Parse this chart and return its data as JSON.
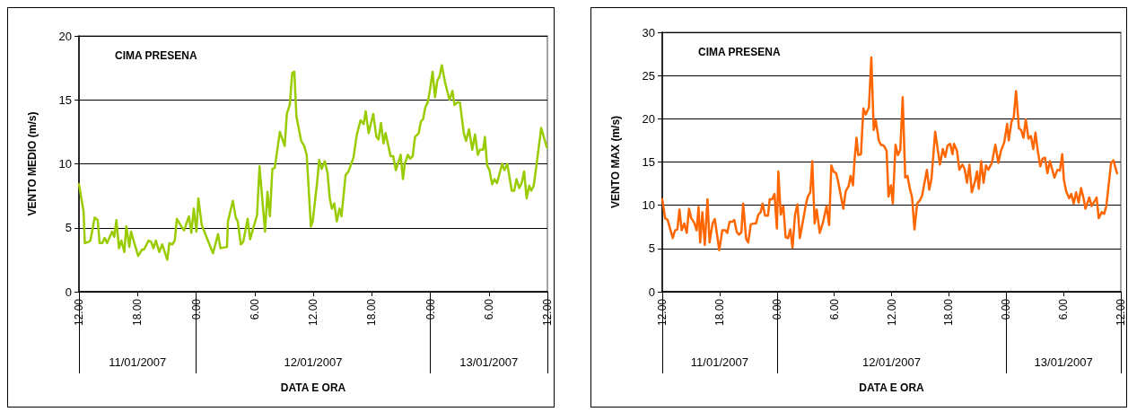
{
  "chart_data": [
    {
      "type": "line",
      "title": "CIMA PRESENA",
      "xlabel": "DATA E ORA",
      "ylabel": "VENTO MEDIO (m/s)",
      "grid": "y",
      "marker": "none",
      "line_style": "solid",
      "xlim": [
        "2007-01-11T12:00",
        "2007-01-13T12:00"
      ],
      "xticks": [
        {
          "value": "2007-01-11T12:00",
          "label": "12.00"
        },
        {
          "value": "2007-01-11T18:00",
          "label": "18.00"
        },
        {
          "value": "2007-01-12T00:00",
          "label": "0.00"
        },
        {
          "value": "2007-01-12T06:00",
          "label": "6.00"
        },
        {
          "value": "2007-01-12T12:00",
          "label": "12.00"
        },
        {
          "value": "2007-01-12T18:00",
          "label": "18.00"
        },
        {
          "value": "2007-01-13T00:00",
          "label": "0.00"
        },
        {
          "value": "2007-01-13T06:00",
          "label": "6.00"
        },
        {
          "value": "2007-01-13T12:00",
          "label": "12.00"
        }
      ],
      "x2lim": [
        "2007-01-11T12:00",
        "2007-01-13T12:00"
      ],
      "x2ticks": [
        {
          "value": "2007-01-11T12:00",
          "label": null
        },
        {
          "value": "2007-01-11T18:00",
          "label": "11/01/2007"
        },
        {
          "value": "2007-01-12T00:00",
          "label": null
        },
        {
          "value": "2007-01-12T12:00",
          "label": "12/01/2007"
        },
        {
          "value": "2007-01-13T00:00",
          "label": null
        },
        {
          "value": "2007-01-13T06:00",
          "label": "13/01/2007"
        },
        {
          "value": "2007-01-13T12:00",
          "label": null
        }
      ],
      "ylim": [
        0,
        20
      ],
      "yticks": [
        0,
        5,
        10,
        15,
        20
      ],
      "series": [
        {
          "color": "#99cc00",
          "x": [
            "2007-01-11T12:00",
            "2007-01-11T12:28",
            "2007-01-11T12:36",
            "2007-01-11T13:00",
            "2007-01-11T13:10",
            "2007-01-11T13:37",
            "2007-01-11T13:55",
            "2007-01-11T14:07",
            "2007-01-11T14:23",
            "2007-01-11T14:38",
            "2007-01-11T14:53",
            "2007-01-11T15:24",
            "2007-01-11T15:37",
            "2007-01-11T15:50",
            "2007-01-11T16:06",
            "2007-01-11T16:21",
            "2007-01-11T16:39",
            "2007-01-11T16:51",
            "2007-01-11T17:10",
            "2007-01-11T17:20",
            "2007-01-11T17:43",
            "2007-01-11T18:04",
            "2007-01-11T18:28",
            "2007-01-11T18:40",
            "2007-01-11T19:08",
            "2007-01-11T19:23",
            "2007-01-11T19:38",
            "2007-01-11T19:53",
            "2007-01-11T20:14",
            "2007-01-11T20:32",
            "2007-01-11T21:03",
            "2007-01-11T21:16",
            "2007-01-11T21:34",
            "2007-01-11T21:49",
            "2007-01-11T22:02",
            "2007-01-11T22:25",
            "2007-01-11T22:46",
            "2007-01-11T23:16",
            "2007-01-11T23:31",
            "2007-01-11T23:46",
            "2007-01-12T00:02",
            "2007-01-12T00:14",
            "2007-01-12T00:35",
            "2007-01-12T01:44",
            "2007-01-12T02:15",
            "2007-01-12T02:30",
            "2007-01-12T03:10",
            "2007-01-12T03:16",
            "2007-01-12T03:46",
            "2007-01-12T04:04",
            "2007-01-12T04:16",
            "2007-01-12T04:35",
            "2007-01-12T04:50",
            "2007-01-12T05:17",
            "2007-01-12T05:32",
            "2007-01-12T06:15",
            "2007-01-12T06:30",
            "2007-01-12T07:04",
            "2007-01-12T07:19",
            "2007-01-12T07:34",
            "2007-01-12T07:49",
            "2007-01-12T08:04",
            "2007-01-12T08:35",
            "2007-01-12T09:05",
            "2007-01-12T09:18",
            "2007-01-12T09:36",
            "2007-01-12T09:51",
            "2007-01-12T10:04",
            "2007-01-12T10:17",
            "2007-01-12T10:46",
            "2007-01-12T11:05",
            "2007-01-12T11:20",
            "2007-01-12T11:46",
            "2007-01-12T11:57",
            "2007-01-12T12:23",
            "2007-01-12T12:37",
            "2007-01-12T12:52",
            "2007-01-12T13:11",
            "2007-01-12T13:28",
            "2007-01-12T13:42",
            "2007-01-12T13:55",
            "2007-01-12T14:10",
            "2007-01-12T14:25",
            "2007-01-12T14:42",
            "2007-01-12T14:54",
            "2007-01-12T15:19",
            "2007-01-12T15:37",
            "2007-01-12T16:08",
            "2007-01-12T16:27",
            "2007-01-12T16:51",
            "2007-01-12T17:10",
            "2007-01-12T17:23",
            "2007-01-12T17:41",
            "2007-01-12T18:09",
            "2007-01-12T18:29",
            "2007-01-12T18:42",
            "2007-01-12T18:57",
            "2007-01-12T19:12",
            "2007-01-12T19:25",
            "2007-01-12T19:56",
            "2007-01-12T20:12",
            "2007-01-12T20:28",
            "2007-01-12T20:58",
            "2007-01-12T21:12",
            "2007-01-12T21:23",
            "2007-01-12T21:42",
            "2007-01-12T21:57",
            "2007-01-12T22:12",
            "2007-01-12T22:26",
            "2007-01-12T22:49",
            "2007-01-12T23:02",
            "2007-01-12T23:16",
            "2007-01-12T23:29",
            "2007-01-12T23:44",
            "2007-01-12T23:57",
            "2007-01-13T00:14",
            "2007-01-13T00:29",
            "2007-01-13T00:43",
            "2007-01-13T00:56",
            "2007-01-13T01:11",
            "2007-01-13T01:30",
            "2007-01-13T01:58",
            "2007-01-13T02:16",
            "2007-01-13T02:29",
            "2007-01-13T02:46",
            "2007-01-13T03:02",
            "2007-01-13T03:26",
            "2007-01-13T03:40",
            "2007-01-13T03:58",
            "2007-01-13T04:18",
            "2007-01-13T04:35",
            "2007-01-13T04:52",
            "2007-01-13T05:06",
            "2007-01-13T05:25",
            "2007-01-13T05:36",
            "2007-01-13T05:49",
            "2007-01-13T06:04",
            "2007-01-13T06:20",
            "2007-01-13T06:35",
            "2007-01-13T06:50",
            "2007-01-13T07:22",
            "2007-01-13T07:36",
            "2007-01-13T07:53",
            "2007-01-13T08:21",
            "2007-01-13T08:36",
            "2007-01-13T08:50",
            "2007-01-13T09:07",
            "2007-01-13T09:22",
            "2007-01-13T09:37",
            "2007-01-13T09:52",
            "2007-01-13T10:08",
            "2007-01-13T10:21",
            "2007-01-13T10:36",
            "2007-01-13T10:55",
            "2007-01-13T11:22",
            "2007-01-13T11:56"
          ],
          "values": [
            8.4,
            6.3,
            3.8,
            3.9,
            4.0,
            5.8,
            5.6,
            3.8,
            3.8,
            4.2,
            3.8,
            4.7,
            4.3,
            5.6,
            3.4,
            4.0,
            3.1,
            5.1,
            3.5,
            4.7,
            3.7,
            2.8,
            3.3,
            3.3,
            4.0,
            3.9,
            3.4,
            4.0,
            3.1,
            3.7,
            2.5,
            3.8,
            3.7,
            4.0,
            5.7,
            5.2,
            4.8,
            5.9,
            4.6,
            6.5,
            4.7,
            7.3,
            5.2,
            3.0,
            4.5,
            3.4,
            3.5,
            5.5,
            7.1,
            5.8,
            5.5,
            3.7,
            3.9,
            5.7,
            4.1,
            6.0,
            9.8,
            4.7,
            7.8,
            5.9,
            9.6,
            9.7,
            12.5,
            11.4,
            13.9,
            14.6,
            17.1,
            17.2,
            13.7,
            11.8,
            11.4,
            10.7,
            5.1,
            5.5,
            8.4,
            10.3,
            9.6,
            10.2,
            9.3,
            7.3,
            6.5,
            6.9,
            5.5,
            6.5,
            5.9,
            9.1,
            9.4,
            10.5,
            12.2,
            13.4,
            13.1,
            14.1,
            12.4,
            13.9,
            12.1,
            11.9,
            13.2,
            11.6,
            12.4,
            10.6,
            10.6,
            9.5,
            10.7,
            8.8,
            10.0,
            10.7,
            10.4,
            10.6,
            12.1,
            12.4,
            13.3,
            13.5,
            14.4,
            14.8,
            15.7,
            17.2,
            15.2,
            16.5,
            16.8,
            17.7,
            16.4,
            15.0,
            15.7,
            14.6,
            14.8,
            14.8,
            12.4,
            11.8,
            12.7,
            11.1,
            12.3,
            10.7,
            11.1,
            11.1,
            12.1,
            9.9,
            9.5,
            8.4,
            8.8,
            8.5,
            10.0,
            9.5,
            10.0,
            7.9,
            7.9,
            8.8,
            8.1,
            8.5,
            9.4,
            7.3,
            8.3,
            7.9,
            8.3,
            10.1,
            12.8,
            11.3
          ]
        }
      ]
    },
    {
      "type": "line",
      "title": "CIMA PRESENA",
      "xlabel": "DATA E ORA",
      "ylabel": "VENTO MAX (m/s)",
      "grid": "y",
      "marker": "none",
      "line_style": "solid",
      "xlim": [
        "2007-01-11T12:00",
        "2007-01-13T12:00"
      ],
      "xticks": [
        {
          "value": "2007-01-11T12:00",
          "label": "12.00"
        },
        {
          "value": "2007-01-11T18:00",
          "label": "18.00"
        },
        {
          "value": "2007-01-12T00:00",
          "label": "0.00"
        },
        {
          "value": "2007-01-12T06:00",
          "label": "6.00"
        },
        {
          "value": "2007-01-12T12:00",
          "label": "12.00"
        },
        {
          "value": "2007-01-12T18:00",
          "label": "18.00"
        },
        {
          "value": "2007-01-13T00:00",
          "label": "0.00"
        },
        {
          "value": "2007-01-13T06:00",
          "label": "6.00"
        },
        {
          "value": "2007-01-13T12:00",
          "label": "12.00"
        }
      ],
      "x2lim": [
        "2007-01-11T12:00",
        "2007-01-13T12:00"
      ],
      "x2ticks": [
        {
          "value": "2007-01-11T12:00",
          "label": null
        },
        {
          "value": "2007-01-11T18:00",
          "label": "11/01/2007"
        },
        {
          "value": "2007-01-12T00:00",
          "label": null
        },
        {
          "value": "2007-01-12T12:00",
          "label": "12/01/2007"
        },
        {
          "value": "2007-01-13T00:00",
          "label": null
        },
        {
          "value": "2007-01-13T06:00",
          "label": "13/01/2007"
        },
        {
          "value": "2007-01-13T12:00",
          "label": null
        }
      ],
      "ylim": [
        0,
        30
      ],
      "yticks": [
        0,
        5,
        10,
        15,
        20,
        25,
        30
      ],
      "series": [
        {
          "color": "#ff6600",
          "x": [
            "2007-01-11T12:00",
            "2007-01-11T12:18",
            "2007-01-11T12:34",
            "2007-01-11T12:52",
            "2007-01-11T13:06",
            "2007-01-11T13:20",
            "2007-01-11T13:35",
            "2007-01-11T13:48",
            "2007-01-11T14:02",
            "2007-01-11T14:18",
            "2007-01-11T14:34",
            "2007-01-11T14:48",
            "2007-01-11T15:02",
            "2007-01-11T15:20",
            "2007-01-11T15:36",
            "2007-01-11T15:48",
            "2007-01-11T15:58",
            "2007-01-11T16:12",
            "2007-01-11T16:27",
            "2007-01-11T16:44",
            "2007-01-11T16:57",
            "2007-01-11T17:16",
            "2007-01-11T17:30",
            "2007-01-11T17:58",
            "2007-01-11T18:17",
            "2007-01-11T18:37",
            "2007-01-11T18:48",
            "2007-01-11T19:03",
            "2007-01-11T19:22",
            "2007-01-11T19:32",
            "2007-01-11T19:48",
            "2007-01-11T20:02",
            "2007-01-11T20:17",
            "2007-01-11T20:28",
            "2007-01-11T20:47",
            "2007-01-11T21:00",
            "2007-01-11T21:16",
            "2007-01-11T21:38",
            "2007-01-11T21:49",
            "2007-01-11T22:03",
            "2007-01-11T22:18",
            "2007-01-11T22:30",
            "2007-01-11T22:46",
            "2007-01-11T23:04",
            "2007-01-11T23:15",
            "2007-01-11T23:30",
            "2007-01-11T23:45",
            "2007-01-12T00:00",
            "2007-01-12T00:09",
            "2007-01-12T00:24",
            "2007-01-12T00:40",
            "2007-01-12T00:55",
            "2007-01-12T01:10",
            "2007-01-12T01:24",
            "2007-01-12T01:38",
            "2007-01-12T01:54",
            "2007-01-12T02:09",
            "2007-01-12T02:24",
            "2007-01-12T02:42",
            "2007-01-12T03:00",
            "2007-01-12T03:14",
            "2007-01-12T03:30",
            "2007-01-12T03:42",
            "2007-01-12T03:57",
            "2007-01-12T04:10",
            "2007-01-12T04:29",
            "2007-01-12T04:48",
            "2007-01-12T05:12",
            "2007-01-12T05:28",
            "2007-01-12T05:42",
            "2007-01-12T05:56",
            "2007-01-12T06:12",
            "2007-01-12T06:24",
            "2007-01-12T06:57",
            "2007-01-12T07:12",
            "2007-01-12T07:30",
            "2007-01-12T07:43",
            "2007-01-12T07:58",
            "2007-01-12T08:07",
            "2007-01-12T08:20",
            "2007-01-12T08:31",
            "2007-01-12T08:48",
            "2007-01-12T09:03",
            "2007-01-12T09:18",
            "2007-01-12T09:38",
            "2007-01-12T09:53",
            "2007-01-12T10:08",
            "2007-01-12T10:21",
            "2007-01-12T10:40",
            "2007-01-12T10:53",
            "2007-01-12T11:11",
            "2007-01-12T11:29",
            "2007-01-12T11:41",
            "2007-01-12T11:56",
            "2007-01-12T12:08",
            "2007-01-12T12:25",
            "2007-01-12T12:40",
            "2007-01-12T12:55",
            "2007-01-12T13:10",
            "2007-01-12T13:26",
            "2007-01-12T13:40",
            "2007-01-12T13:54",
            "2007-01-12T14:09",
            "2007-01-12T14:24",
            "2007-01-12T14:41",
            "2007-01-12T14:59",
            "2007-01-12T15:12",
            "2007-01-12T15:42",
            "2007-01-12T15:57",
            "2007-01-12T16:11",
            "2007-01-12T16:34",
            "2007-01-12T17:04",
            "2007-01-12T17:22",
            "2007-01-12T17:37",
            "2007-01-12T17:52",
            "2007-01-12T18:08",
            "2007-01-12T18:23",
            "2007-01-12T18:32",
            "2007-01-12T18:51",
            "2007-01-12T19:06",
            "2007-01-12T19:25",
            "2007-01-12T19:39",
            "2007-01-12T19:54",
            "2007-01-12T20:09",
            "2007-01-12T20:24",
            "2007-01-12T20:43",
            "2007-01-12T20:57",
            "2007-01-12T21:08",
            "2007-01-12T21:23",
            "2007-01-12T21:38",
            "2007-01-12T21:53",
            "2007-01-12T22:08",
            "2007-01-12T22:30",
            "2007-01-12T22:52",
            "2007-01-12T23:11",
            "2007-01-12T23:26",
            "2007-01-12T23:48",
            "2007-01-13T00:06",
            "2007-01-13T00:16",
            "2007-01-13T00:34",
            "2007-01-13T00:47",
            "2007-01-13T01:02",
            "2007-01-13T01:20",
            "2007-01-13T01:34",
            "2007-01-13T01:49",
            "2007-01-13T02:03",
            "2007-01-13T02:20",
            "2007-01-13T02:35",
            "2007-01-13T02:50",
            "2007-01-13T03:04",
            "2007-01-13T03:17",
            "2007-01-13T03:34",
            "2007-01-13T03:49",
            "2007-01-13T04:04",
            "2007-01-13T04:19",
            "2007-01-13T04:35",
            "2007-01-13T05:03",
            "2007-01-13T05:22",
            "2007-01-13T05:37",
            "2007-01-13T05:52",
            "2007-01-13T06:02",
            "2007-01-13T06:17",
            "2007-01-13T06:36",
            "2007-01-13T06:49",
            "2007-01-13T07:04",
            "2007-01-13T07:19",
            "2007-01-13T07:35",
            "2007-01-13T07:50",
            "2007-01-13T08:05",
            "2007-01-13T08:18",
            "2007-01-13T08:42",
            "2007-01-13T08:57",
            "2007-01-13T09:28",
            "2007-01-13T09:41",
            "2007-01-13T10:00",
            "2007-01-13T10:15",
            "2007-01-13T10:29",
            "2007-01-13T10:59",
            "2007-01-13T11:14",
            "2007-01-13T11:36"
          ],
          "values": [
            10.7,
            8.5,
            8.3,
            7.1,
            6.2,
            7.1,
            7.2,
            9.5,
            7.1,
            7.9,
            6.8,
            9.6,
            8.5,
            8.0,
            7.1,
            9.8,
            5.7,
            9.2,
            5.4,
            10.7,
            5.7,
            7.9,
            8.4,
            4.8,
            7.1,
            7.1,
            6.8,
            8.1,
            8.1,
            8.3,
            6.9,
            6.6,
            6.9,
            10.2,
            6.1,
            5.7,
            7.8,
            7.9,
            7.9,
            8.9,
            9.2,
            10.2,
            8.8,
            8.8,
            10.7,
            10.7,
            11.3,
            7.3,
            13.9,
            8.9,
            9.9,
            6.3,
            6.2,
            7.2,
            5.1,
            8.9,
            10.1,
            6.2,
            8.0,
            9.9,
            11.0,
            11.5,
            15.1,
            7.9,
            9.5,
            6.8,
            7.9,
            9.9,
            7.7,
            14.6,
            13.9,
            13.7,
            12.8,
            9.6,
            11.6,
            12.2,
            13.4,
            12.3,
            15.1,
            17.8,
            15.8,
            15.9,
            21.2,
            20.5,
            21.3,
            27.1,
            18.7,
            19.8,
            17.5,
            17.0,
            16.9,
            16.3,
            11.0,
            12.3,
            10.2,
            17.0,
            15.8,
            16.4,
            22.5,
            13.2,
            13.4,
            12.0,
            10.9,
            7.2,
            10.2,
            10.6,
            11.1,
            14.1,
            11.8,
            13.1,
            18.5,
            14.7,
            16.5,
            15.6,
            16.9,
            17.1,
            15.9,
            17.1,
            16.3,
            14.1,
            14.7,
            14.2,
            12.6,
            14.7,
            11.5,
            12.7,
            13.9,
            11.9,
            15.1,
            12.6,
            14.6,
            14.1,
            14.9,
            17.0,
            14.9,
            16.2,
            17.3,
            19.4,
            17.5,
            19.7,
            20.1,
            23.2,
            18.9,
            18.7,
            17.8,
            19.9,
            17.7,
            18.0,
            16.5,
            18.4,
            16.5,
            14.5,
            15.4,
            15.5,
            13.7,
            15.1,
            13.2,
            14.1,
            14.0,
            15.9,
            13.0,
            11.6,
            10.8,
            11.3,
            10.2,
            11.5,
            10.3,
            12.0,
            10.9,
            9.6,
            10.9,
            9.9,
            10.9,
            8.5,
            9.2,
            9.0,
            9.9,
            14.9,
            15.2,
            13.7
          ]
        }
      ]
    }
  ]
}
